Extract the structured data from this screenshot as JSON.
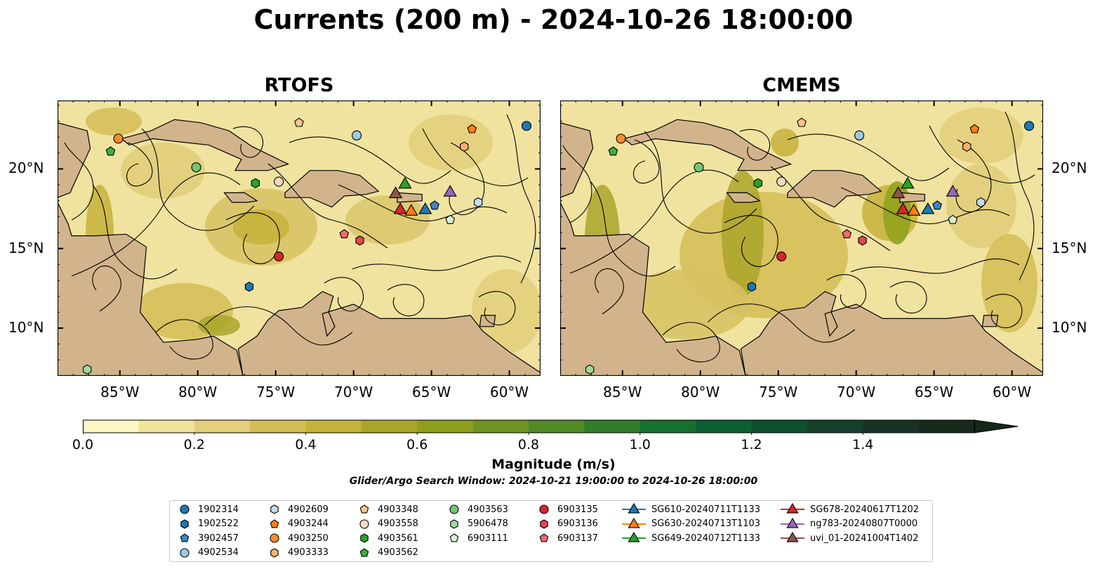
{
  "title": "Currents (200 m) - 2024-10-26 18:00:00",
  "panels": [
    {
      "title": "RTOFS",
      "lat_side": "left"
    },
    {
      "title": "CMEMS",
      "lat_side": "right"
    }
  ],
  "map_extent": {
    "lon_min": -89,
    "lon_max": -58,
    "lat_min": 7,
    "lat_max": 24.3
  },
  "lat_ticks": [
    {
      "value": 10,
      "label": "10°N"
    },
    {
      "value": 15,
      "label": "15°N"
    },
    {
      "value": 20,
      "label": "20°N"
    }
  ],
  "lon_ticks": [
    {
      "value": -85,
      "label": "85°W"
    },
    {
      "value": -80,
      "label": "80°W"
    },
    {
      "value": -75,
      "label": "75°W"
    },
    {
      "value": -70,
      "label": "70°W"
    },
    {
      "value": -65,
      "label": "65°W"
    },
    {
      "value": -60,
      "label": "60°W"
    }
  ],
  "colorbar": {
    "label": "Magnitude (m/s)",
    "min": 0.0,
    "max": 1.6,
    "extend": "max",
    "ticks": [
      {
        "value": 0.0,
        "label": "0.0"
      },
      {
        "value": 0.2,
        "label": "0.2"
      },
      {
        "value": 0.4,
        "label": "0.4"
      },
      {
        "value": 0.6,
        "label": "0.6"
      },
      {
        "value": 0.8,
        "label": "0.8"
      },
      {
        "value": 1.0,
        "label": "1.0"
      },
      {
        "value": 1.2,
        "label": "1.2"
      },
      {
        "value": 1.4,
        "label": "1.4"
      }
    ],
    "colors": [
      "#fdf7c3",
      "#f2e39c",
      "#e3cf7a",
      "#d4bd55",
      "#c6b23b",
      "#aba42a",
      "#8fa01a",
      "#6f9420",
      "#4f8a26",
      "#317e2a",
      "#16702f",
      "#0d6032",
      "#0c5030",
      "#15402a",
      "#183322",
      "#162a1c"
    ],
    "extend_color": "#15281a"
  },
  "colors": {
    "land": "#d2b48c",
    "ocean_nodata": "#97b6e1",
    "river": "#a8bfd8"
  },
  "search_window": "Glider/Argo Search Window: 2024-10-21 19:00:00 to 2024-10-26 18:00:00",
  "platforms": [
    {
      "id": "1902314",
      "marker": "circle",
      "color": "#1f77b4",
      "lon": -58.9,
      "lat": 22.7
    },
    {
      "id": "1902522",
      "marker": "hexagon",
      "color": "#1f77b4",
      "lon": -76.7,
      "lat": 12.6
    },
    {
      "id": "3902457",
      "marker": "pentagon",
      "color": "#3a86c8",
      "lon": -64.8,
      "lat": 17.7
    },
    {
      "id": "4902534",
      "marker": "circle",
      "color": "#9ecae1",
      "lon": -69.8,
      "lat": 22.1
    },
    {
      "id": "4902609",
      "marker": "hexagon",
      "color": "#c6dbef",
      "lon": -62.0,
      "lat": 17.9
    },
    {
      "id": "4903244",
      "marker": "pentagon",
      "color": "#ff7f0e",
      "lon": -62.4,
      "lat": 22.5
    },
    {
      "id": "4903250",
      "marker": "circle",
      "color": "#ff8c2e",
      "lon": -85.1,
      "lat": 21.9
    },
    {
      "id": "4903333",
      "marker": "hexagon",
      "color": "#fdae6b",
      "lon": -62.9,
      "lat": 21.4
    },
    {
      "id": "4903348",
      "marker": "pentagon",
      "color": "#fdc58f",
      "lon": -73.5,
      "lat": 22.9
    },
    {
      "id": "4903558",
      "marker": "circle",
      "color": "#fdd9c3",
      "lon": -74.8,
      "lat": 19.2
    },
    {
      "id": "4903561",
      "marker": "hexagon",
      "color": "#2ca02c",
      "lon": -76.3,
      "lat": 19.1
    },
    {
      "id": "4903562",
      "marker": "pentagon",
      "color": "#3cb043",
      "lon": -85.6,
      "lat": 21.1
    },
    {
      "id": "4903563",
      "marker": "circle",
      "color": "#74c476",
      "lon": -80.1,
      "lat": 20.1
    },
    {
      "id": "5906478",
      "marker": "hexagon",
      "color": "#a1d99b",
      "lon": -87.1,
      "lat": 7.4
    },
    {
      "id": "6903111",
      "marker": "pentagon",
      "color": "#d9f0d3",
      "lon": -63.8,
      "lat": 16.8
    },
    {
      "id": "6903135",
      "marker": "circle",
      "color": "#d62728",
      "lon": -74.8,
      "lat": 14.5
    },
    {
      "id": "6903136",
      "marker": "hexagon",
      "color": "#e0474c",
      "lon": -69.6,
      "lat": 15.5
    },
    {
      "id": "6903137",
      "marker": "pentagon",
      "color": "#ee6a6e",
      "lon": -70.6,
      "lat": 15.9
    }
  ],
  "gliders": [
    {
      "id": "SG610-20240711T1133",
      "color": "#1f77b4",
      "lon": -65.4,
      "lat": 17.5
    },
    {
      "id": "SG630-20240713T1103",
      "color": "#ff7f0e",
      "lon": -66.3,
      "lat": 17.4
    },
    {
      "id": "SG649-20240712T1133",
      "color": "#2ca02c",
      "lon": -66.7,
      "lat": 19.1
    },
    {
      "id": "SG678-20240617T1202",
      "color": "#d62728",
      "lon": -67.0,
      "lat": 17.5
    },
    {
      "id": "ng783-20240807T0000",
      "color": "#9467bd",
      "lon": -63.8,
      "lat": 18.6
    },
    {
      "id": "uvi_01-20241004T1402",
      "color": "#8c564b",
      "lon": -67.3,
      "lat": 18.5
    }
  ]
}
